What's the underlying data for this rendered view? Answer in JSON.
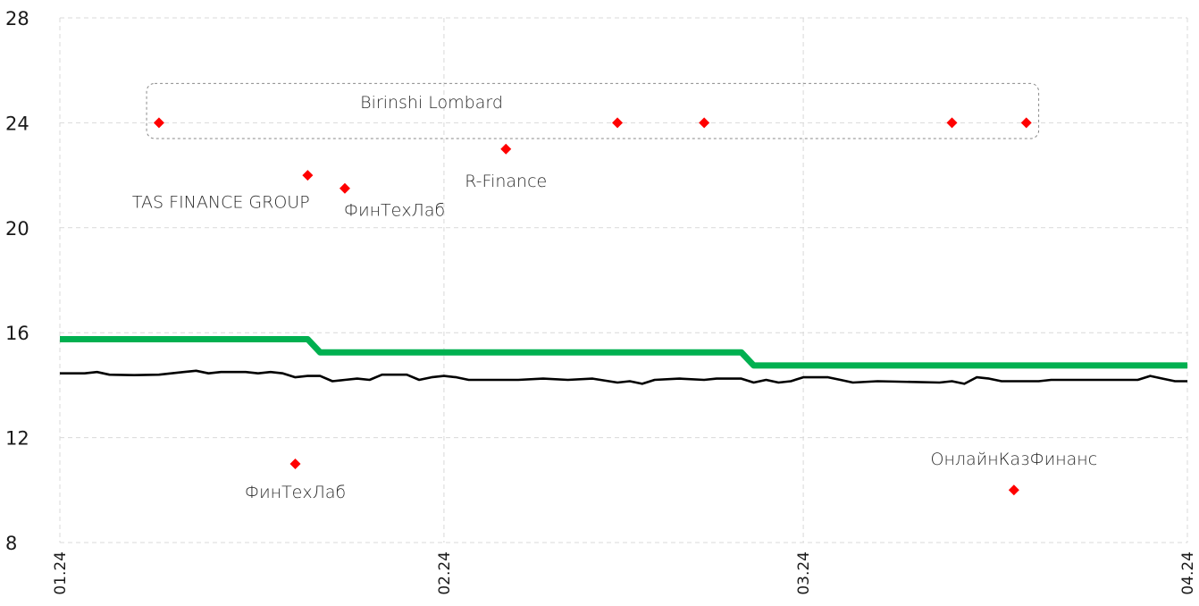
{
  "chart_data": {
    "type": "line",
    "title": "",
    "xlabel": "",
    "ylabel": "",
    "ylim": [
      8,
      28
    ],
    "xlim": [
      "2024-01-01",
      "2024-04-01"
    ],
    "y_ticks": [
      8,
      12,
      16,
      20,
      24,
      28
    ],
    "x_ticks": [
      {
        "date": "2024-01-01",
        "label": "01.24"
      },
      {
        "date": "2024-02-01",
        "label": "02.24"
      },
      {
        "date": "2024-03-01",
        "label": "03.24"
      },
      {
        "date": "2024-04-01",
        "label": "04.24"
      }
    ],
    "grid": true,
    "legend": "none",
    "colors": {
      "policy_rate": "#00b050",
      "market_rate": "#000000",
      "points": "#ff0000"
    },
    "series": [
      {
        "type": "step",
        "color": "#00b050",
        "points": [
          {
            "x": "2024-01-01",
            "y": 15.75
          },
          {
            "x": "2024-01-21",
            "y": 15.75
          },
          {
            "x": "2024-01-22",
            "y": 15.25
          },
          {
            "x": "2024-02-25",
            "y": 15.25
          },
          {
            "x": "2024-02-26",
            "y": 14.75
          },
          {
            "x": "2024-04-01",
            "y": 14.75
          }
        ]
      },
      {
        "type": "line",
        "color": "#000000",
        "points": [
          {
            "x": "2024-01-01",
            "y": 14.45
          },
          {
            "x": "2024-01-03",
            "y": 14.45
          },
          {
            "x": "2024-01-04",
            "y": 14.5
          },
          {
            "x": "2024-01-05",
            "y": 14.4
          },
          {
            "x": "2024-01-07",
            "y": 14.38
          },
          {
            "x": "2024-01-09",
            "y": 14.4
          },
          {
            "x": "2024-01-11",
            "y": 14.5
          },
          {
            "x": "2024-01-12",
            "y": 14.55
          },
          {
            "x": "2024-01-13",
            "y": 14.45
          },
          {
            "x": "2024-01-14",
            "y": 14.5
          },
          {
            "x": "2024-01-16",
            "y": 14.5
          },
          {
            "x": "2024-01-17",
            "y": 14.45
          },
          {
            "x": "2024-01-18",
            "y": 14.5
          },
          {
            "x": "2024-01-19",
            "y": 14.45
          },
          {
            "x": "2024-01-20",
            "y": 14.3
          },
          {
            "x": "2024-01-21",
            "y": 14.35
          },
          {
            "x": "2024-01-22",
            "y": 14.35
          },
          {
            "x": "2024-01-23",
            "y": 14.15
          },
          {
            "x": "2024-01-24",
            "y": 14.2
          },
          {
            "x": "2024-01-25",
            "y": 14.25
          },
          {
            "x": "2024-01-26",
            "y": 14.2
          },
          {
            "x": "2024-01-27",
            "y": 14.4
          },
          {
            "x": "2024-01-29",
            "y": 14.4
          },
          {
            "x": "2024-01-30",
            "y": 14.2
          },
          {
            "x": "2024-01-31",
            "y": 14.3
          },
          {
            "x": "2024-02-01",
            "y": 14.35
          },
          {
            "x": "2024-02-02",
            "y": 14.3
          },
          {
            "x": "2024-02-03",
            "y": 14.2
          },
          {
            "x": "2024-02-07",
            "y": 14.2
          },
          {
            "x": "2024-02-09",
            "y": 14.25
          },
          {
            "x": "2024-02-11",
            "y": 14.2
          },
          {
            "x": "2024-02-13",
            "y": 14.25
          },
          {
            "x": "2024-02-15",
            "y": 14.1
          },
          {
            "x": "2024-02-16",
            "y": 14.15
          },
          {
            "x": "2024-02-17",
            "y": 14.05
          },
          {
            "x": "2024-02-18",
            "y": 14.2
          },
          {
            "x": "2024-02-20",
            "y": 14.25
          },
          {
            "x": "2024-02-22",
            "y": 14.2
          },
          {
            "x": "2024-02-23",
            "y": 14.25
          },
          {
            "x": "2024-02-25",
            "y": 14.25
          },
          {
            "x": "2024-02-26",
            "y": 14.1
          },
          {
            "x": "2024-02-27",
            "y": 14.2
          },
          {
            "x": "2024-02-28",
            "y": 14.1
          },
          {
            "x": "2024-02-29",
            "y": 14.15
          },
          {
            "x": "2024-03-01",
            "y": 14.3
          },
          {
            "x": "2024-03-03",
            "y": 14.3
          },
          {
            "x": "2024-03-04",
            "y": 14.2
          },
          {
            "x": "2024-03-05",
            "y": 14.1
          },
          {
            "x": "2024-03-07",
            "y": 14.15
          },
          {
            "x": "2024-03-12",
            "y": 14.1
          },
          {
            "x": "2024-03-13",
            "y": 14.15
          },
          {
            "x": "2024-03-14",
            "y": 14.05
          },
          {
            "x": "2024-03-15",
            "y": 14.3
          },
          {
            "x": "2024-03-16",
            "y": 14.25
          },
          {
            "x": "2024-03-17",
            "y": 14.15
          },
          {
            "x": "2024-03-20",
            "y": 14.15
          },
          {
            "x": "2024-03-21",
            "y": 14.2
          },
          {
            "x": "2024-03-28",
            "y": 14.2
          },
          {
            "x": "2024-03-29",
            "y": 14.35
          },
          {
            "x": "2024-03-30",
            "y": 14.25
          },
          {
            "x": "2024-03-31",
            "y": 14.15
          },
          {
            "x": "2024-04-01",
            "y": 14.15
          }
        ]
      }
    ],
    "scatter": [
      {
        "x": "2024-01-09",
        "y": 24
      },
      {
        "x": "2024-01-20",
        "y": 11
      },
      {
        "x": "2024-01-21",
        "y": 22
      },
      {
        "x": "2024-01-24",
        "y": 21.5
      },
      {
        "x": "2024-02-06",
        "y": 23
      },
      {
        "x": "2024-02-15",
        "y": 24
      },
      {
        "x": "2024-02-22",
        "y": 24
      },
      {
        "x": "2024-03-13",
        "y": 24
      },
      {
        "x": "2024-03-18",
        "y": 10
      },
      {
        "x": "2024-03-19",
        "y": 24
      }
    ],
    "annotations": [
      {
        "text": "Birinshi Lombard",
        "x": "2024-01-31",
        "y": 24.8
      },
      {
        "text": "TAS FINANCE GROUP",
        "x": "2024-01-14",
        "y": 21.0
      },
      {
        "text": "ФинТехЛаб",
        "x": "2024-01-28",
        "y": 20.7
      },
      {
        "text": "R-Finance",
        "x": "2024-02-06",
        "y": 21.8
      },
      {
        "text": "ФинТехЛаб",
        "x": "2024-01-20",
        "y": 9.95
      },
      {
        "text": "ОнлайнКазФинанс",
        "x": "2024-03-18",
        "y": 11.2
      }
    ],
    "group_box": {
      "x0": "2024-01-08",
      "x1": "2024-03-20",
      "y0": 23.4,
      "y1": 25.5
    }
  }
}
